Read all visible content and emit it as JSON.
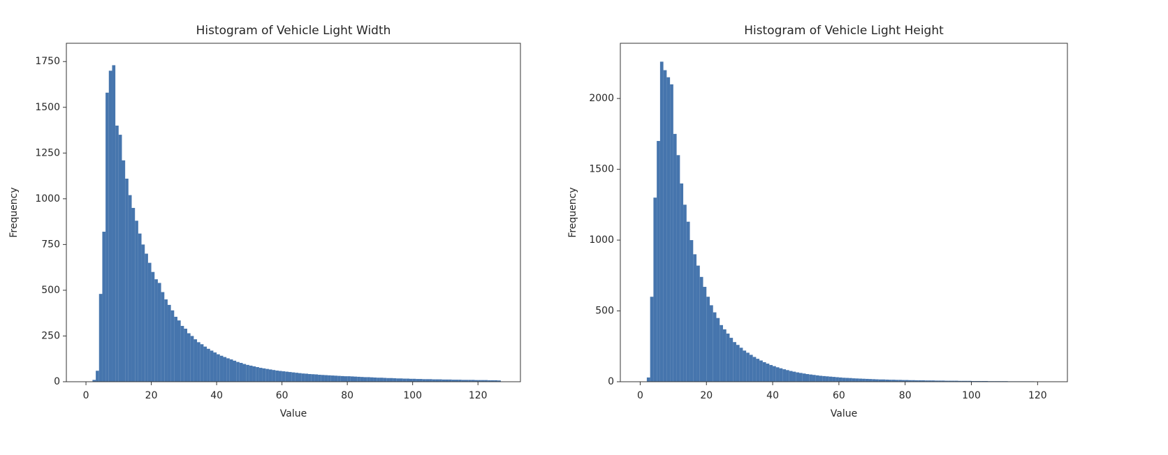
{
  "chart_data": [
    {
      "type": "histogram",
      "title": "Histogram of Vehicle Light Width",
      "xlabel": "Value",
      "ylabel": "Frequency",
      "color": "#4675ad",
      "bins": [
        2,
        3,
        4,
        5,
        6,
        7,
        8,
        9,
        10,
        11,
        12,
        13,
        14,
        15,
        16,
        17,
        18,
        19,
        20,
        21,
        22,
        23,
        24,
        25,
        26,
        27,
        28,
        29,
        30,
        31,
        32,
        33,
        34,
        35,
        36,
        37,
        38,
        39,
        40,
        41,
        42,
        43,
        44,
        45,
        46,
        47,
        48,
        49,
        50,
        51,
        52,
        53,
        54,
        55,
        56,
        57,
        58,
        59,
        60,
        61,
        62,
        63,
        64,
        65,
        66,
        67,
        68,
        69,
        70,
        71,
        72,
        73,
        74,
        75,
        76,
        77,
        78,
        79,
        80,
        81,
        82,
        83,
        84,
        85,
        86,
        87,
        88,
        89,
        90,
        91,
        92,
        93,
        94,
        95,
        96,
        97,
        98,
        99,
        100,
        101,
        102,
        103,
        104,
        105,
        106,
        107,
        108,
        109,
        110,
        111,
        112,
        113,
        114,
        115,
        116,
        117,
        118,
        119,
        120,
        121,
        122,
        123,
        124,
        125,
        126,
        127
      ],
      "values": [
        10,
        60,
        480,
        820,
        1580,
        1700,
        1730,
        1400,
        1350,
        1210,
        1110,
        1020,
        950,
        880,
        810,
        750,
        700,
        650,
        600,
        560,
        540,
        490,
        450,
        420,
        390,
        355,
        335,
        305,
        290,
        265,
        250,
        232,
        216,
        205,
        192,
        180,
        170,
        160,
        150,
        142,
        135,
        128,
        122,
        115,
        108,
        103,
        97,
        92,
        88,
        84,
        80,
        76,
        73,
        70,
        67,
        64,
        61,
        59,
        57,
        55,
        53,
        51,
        49,
        47,
        45,
        44,
        42,
        41,
        40,
        38,
        37,
        36,
        35,
        34,
        33,
        32,
        31,
        30,
        30,
        29,
        28,
        27,
        26,
        25,
        25,
        24,
        23,
        22,
        22,
        21,
        20,
        20,
        19,
        18,
        18,
        17,
        17,
        16,
        16,
        15,
        15,
        14,
        14,
        14,
        13,
        13,
        13,
        12,
        12,
        12,
        11,
        11,
        11,
        10,
        10,
        10,
        10,
        9,
        9,
        9,
        9,
        8,
        8,
        8,
        7
      ],
      "xlim": [
        -6,
        133
      ],
      "ylim": [
        0,
        1850
      ],
      "xticks": [
        0,
        20,
        40,
        60,
        80,
        100,
        120
      ],
      "yticks": [
        0,
        250,
        500,
        750,
        1000,
        1250,
        1500,
        1750
      ]
    },
    {
      "type": "histogram",
      "title": "Histogram of Vehicle Light Height",
      "xlabel": "Value",
      "ylabel": "Frequency",
      "color": "#4675ad",
      "bins": [
        2,
        3,
        4,
        5,
        6,
        7,
        8,
        9,
        10,
        11,
        12,
        13,
        14,
        15,
        16,
        17,
        18,
        19,
        20,
        21,
        22,
        23,
        24,
        25,
        26,
        27,
        28,
        29,
        30,
        31,
        32,
        33,
        34,
        35,
        36,
        37,
        38,
        39,
        40,
        41,
        42,
        43,
        44,
        45,
        46,
        47,
        48,
        49,
        50,
        51,
        52,
        53,
        54,
        55,
        56,
        57,
        58,
        59,
        60,
        61,
        62,
        63,
        64,
        65,
        66,
        67,
        68,
        69,
        70,
        71,
        72,
        73,
        74,
        75,
        76,
        77,
        78,
        79,
        80,
        81,
        82,
        83,
        84,
        85,
        86,
        87,
        88,
        89,
        90,
        91,
        92,
        93,
        94,
        95,
        96,
        97,
        98,
        99,
        100,
        101,
        102,
        103,
        104,
        105,
        106,
        107,
        108,
        109,
        110,
        111,
        112,
        113,
        114,
        115,
        116,
        117,
        118,
        119,
        120,
        121,
        122,
        123,
        124
      ],
      "values": [
        30,
        600,
        1300,
        1700,
        2260,
        2200,
        2150,
        2100,
        1750,
        1600,
        1400,
        1250,
        1130,
        1000,
        900,
        820,
        740,
        670,
        600,
        540,
        490,
        450,
        400,
        370,
        340,
        310,
        280,
        260,
        240,
        220,
        205,
        190,
        175,
        162,
        150,
        138,
        128,
        118,
        110,
        102,
        95,
        88,
        82,
        76,
        71,
        66,
        62,
        58,
        54,
        51,
        48,
        45,
        42,
        40,
        38,
        36,
        34,
        32,
        30,
        28,
        27,
        26,
        24,
        23,
        22,
        21,
        20,
        19,
        18,
        17,
        16,
        16,
        15,
        14,
        14,
        13,
        13,
        12,
        12,
        11,
        11,
        10,
        10,
        10,
        9,
        9,
        9,
        8,
        8,
        8,
        7,
        7,
        7,
        7,
        6,
        6,
        6,
        6,
        5,
        5,
        5,
        5,
        5,
        4,
        4,
        4,
        4,
        4,
        4,
        3,
        3,
        3,
        3,
        3,
        3,
        3,
        3,
        2,
        2,
        2,
        2,
        2
      ],
      "xlim": [
        -6,
        129
      ],
      "ylim": [
        0,
        2390
      ],
      "xticks": [
        0,
        20,
        40,
        60,
        80,
        100,
        120
      ],
      "yticks": [
        0,
        500,
        1000,
        1500,
        2000
      ]
    }
  ]
}
